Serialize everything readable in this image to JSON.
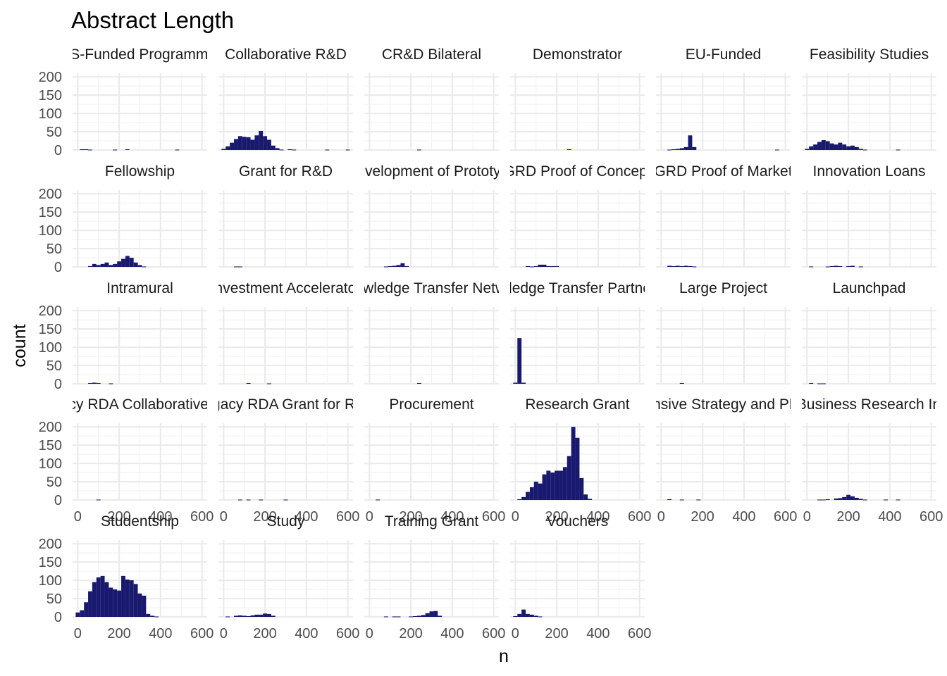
{
  "chart_data": {
    "type": "bar",
    "title": "Abstract Length",
    "xlabel": "n",
    "ylabel": "count",
    "xlim": [
      -25,
      625
    ],
    "ylim": [
      0,
      210
    ],
    "x_ticks": [
      "0",
      "200",
      "400",
      "600"
    ],
    "y_ticks": [
      "0",
      "50",
      "100",
      "150",
      "200"
    ],
    "bar_color": "#191970",
    "bin_width": 20,
    "grid": true,
    "ncol": 6,
    "x_axis_shown_under": [
      18,
      19,
      20,
      21,
      22,
      23,
      24,
      25,
      26,
      27
    ],
    "panels": [
      {
        "label": "BIS-Funded Programmes",
        "bins": [
          [
            20,
            2
          ],
          [
            40,
            2
          ],
          [
            60,
            1
          ],
          [
            180,
            1
          ],
          [
            240,
            2
          ],
          [
            480,
            1
          ]
        ]
      },
      {
        "label": "Collaborative R&D",
        "bins": [
          [
            0,
            3
          ],
          [
            20,
            10
          ],
          [
            40,
            20
          ],
          [
            60,
            30
          ],
          [
            80,
            38
          ],
          [
            100,
            36
          ],
          [
            120,
            35
          ],
          [
            140,
            28
          ],
          [
            160,
            40
          ],
          [
            180,
            52
          ],
          [
            200,
            38
          ],
          [
            220,
            28
          ],
          [
            240,
            12
          ],
          [
            260,
            5
          ],
          [
            280,
            1
          ],
          [
            320,
            2
          ],
          [
            340,
            1
          ],
          [
            500,
            1
          ],
          [
            600,
            1
          ]
        ]
      },
      {
        "label": "CR&D Bilateral",
        "bins": [
          [
            240,
            1
          ]
        ]
      },
      {
        "label": "Demonstrator",
        "bins": [
          [
            260,
            2
          ]
        ]
      },
      {
        "label": "EU-Funded",
        "bins": [
          [
            40,
            1
          ],
          [
            60,
            2
          ],
          [
            80,
            3
          ],
          [
            100,
            5
          ],
          [
            120,
            8
          ],
          [
            140,
            40
          ],
          [
            160,
            8
          ],
          [
            560,
            1
          ]
        ]
      },
      {
        "label": "Feasibility Studies",
        "bins": [
          [
            0,
            3
          ],
          [
            20,
            10
          ],
          [
            40,
            15
          ],
          [
            60,
            22
          ],
          [
            80,
            27
          ],
          [
            100,
            24
          ],
          [
            120,
            18
          ],
          [
            140,
            15
          ],
          [
            160,
            20
          ],
          [
            180,
            15
          ],
          [
            200,
            10
          ],
          [
            220,
            12
          ],
          [
            240,
            8
          ],
          [
            260,
            3
          ],
          [
            280,
            1
          ],
          [
            440,
            1
          ]
        ]
      },
      {
        "label": "Fellowship",
        "bins": [
          [
            60,
            2
          ],
          [
            80,
            8
          ],
          [
            100,
            5
          ],
          [
            120,
            8
          ],
          [
            140,
            12
          ],
          [
            160,
            5
          ],
          [
            180,
            8
          ],
          [
            200,
            15
          ],
          [
            220,
            22
          ],
          [
            240,
            30
          ],
          [
            260,
            25
          ],
          [
            280,
            12
          ],
          [
            300,
            5
          ],
          [
            320,
            1
          ]
        ]
      },
      {
        "label": "Grant for R&D",
        "bins": [
          [
            60,
            1
          ],
          [
            80,
            1
          ]
        ]
      },
      {
        "label": "Development of Prototype",
        "bins": [
          [
            80,
            1
          ],
          [
            100,
            2
          ],
          [
            120,
            3
          ],
          [
            140,
            5
          ],
          [
            160,
            10
          ],
          [
            180,
            2
          ]
        ]
      },
      {
        "label": "GRD Proof of Concept",
        "bins": [
          [
            60,
            2
          ],
          [
            80,
            1
          ],
          [
            100,
            2
          ],
          [
            120,
            6
          ],
          [
            140,
            6
          ],
          [
            160,
            2
          ],
          [
            180,
            2
          ],
          [
            200,
            2
          ]
        ]
      },
      {
        "label": "GRD Proof of Market",
        "bins": [
          [
            40,
            3
          ],
          [
            60,
            2
          ],
          [
            80,
            3
          ],
          [
            100,
            2
          ],
          [
            120,
            3
          ],
          [
            140,
            2
          ],
          [
            160,
            1
          ]
        ]
      },
      {
        "label": "Innovation Loans",
        "bins": [
          [
            20,
            1
          ],
          [
            100,
            1
          ],
          [
            120,
            2
          ],
          [
            140,
            3
          ],
          [
            160,
            2
          ],
          [
            200,
            2
          ],
          [
            220,
            3
          ],
          [
            260,
            1
          ]
        ]
      },
      {
        "label": "Intramural",
        "bins": [
          [
            60,
            2
          ],
          [
            80,
            3
          ],
          [
            100,
            2
          ],
          [
            160,
            1
          ]
        ]
      },
      {
        "label": "Investment Accelerator",
        "bins": [
          [
            120,
            2
          ],
          [
            220,
            1
          ]
        ]
      },
      {
        "label": "Knowledge Transfer Network",
        "bins": [
          [
            240,
            2
          ]
        ]
      },
      {
        "label": "Knowledge Transfer Partnership",
        "bins": [
          [
            0,
            3
          ],
          [
            20,
            125
          ],
          [
            40,
            3
          ]
        ]
      },
      {
        "label": "Large Project",
        "bins": [
          [
            100,
            2
          ]
        ]
      },
      {
        "label": "Launchpad",
        "bins": [
          [
            20,
            2
          ],
          [
            60,
            1
          ],
          [
            80,
            1
          ]
        ]
      },
      {
        "label": "Legacy RDA Collaborative R&D",
        "bins": [
          [
            100,
            1
          ]
        ]
      },
      {
        "label": "Legacy RDA Grant for R&D",
        "bins": [
          [
            80,
            1
          ],
          [
            120,
            1
          ],
          [
            180,
            1
          ],
          [
            300,
            1
          ]
        ]
      },
      {
        "label": "Procurement",
        "bins": [
          [
            40,
            1
          ]
        ]
      },
      {
        "label": "Research Grant",
        "bins": [
          [
            20,
            2
          ],
          [
            40,
            8
          ],
          [
            60,
            22
          ],
          [
            80,
            35
          ],
          [
            100,
            50
          ],
          [
            120,
            45
          ],
          [
            140,
            70
          ],
          [
            160,
            80
          ],
          [
            180,
            75
          ],
          [
            200,
            80
          ],
          [
            220,
            80
          ],
          [
            240,
            90
          ],
          [
            260,
            120
          ],
          [
            280,
            200
          ],
          [
            300,
            170
          ],
          [
            320,
            60
          ],
          [
            340,
            15
          ],
          [
            360,
            3
          ]
        ]
      },
      {
        "label": "Responsive Strategy and Planning",
        "bins": [
          [
            40,
            2
          ],
          [
            100,
            1
          ],
          [
            180,
            1
          ]
        ]
      },
      {
        "label": "Small Business Research Initiative",
        "bins": [
          [
            60,
            1
          ],
          [
            80,
            1
          ],
          [
            100,
            2
          ],
          [
            140,
            4
          ],
          [
            160,
            5
          ],
          [
            180,
            8
          ],
          [
            200,
            14
          ],
          [
            220,
            10
          ],
          [
            240,
            6
          ],
          [
            260,
            3
          ],
          [
            280,
            1
          ],
          [
            380,
            1
          ],
          [
            440,
            1
          ]
        ]
      },
      {
        "label": "Studentship",
        "bins": [
          [
            0,
            12
          ],
          [
            20,
            18
          ],
          [
            40,
            40
          ],
          [
            60,
            70
          ],
          [
            80,
            95
          ],
          [
            100,
            108
          ],
          [
            120,
            112
          ],
          [
            140,
            95
          ],
          [
            160,
            80
          ],
          [
            180,
            75
          ],
          [
            200,
            72
          ],
          [
            220,
            112
          ],
          [
            240,
            102
          ],
          [
            260,
            100
          ],
          [
            280,
            90
          ],
          [
            300,
            64
          ],
          [
            320,
            58
          ],
          [
            340,
            8
          ],
          [
            360,
            3
          ],
          [
            380,
            1
          ]
        ]
      },
      {
        "label": "Study",
        "bins": [
          [
            20,
            1
          ],
          [
            60,
            3
          ],
          [
            80,
            4
          ],
          [
            100,
            3
          ],
          [
            120,
            2
          ],
          [
            140,
            4
          ],
          [
            160,
            6
          ],
          [
            180,
            6
          ],
          [
            200,
            9
          ],
          [
            220,
            8
          ],
          [
            240,
            3
          ]
        ]
      },
      {
        "label": "Training Grant",
        "bins": [
          [
            80,
            1
          ],
          [
            120,
            1
          ],
          [
            140,
            1
          ],
          [
            200,
            1
          ],
          [
            220,
            2
          ],
          [
            240,
            3
          ],
          [
            260,
            5
          ],
          [
            280,
            10
          ],
          [
            300,
            15
          ],
          [
            320,
            16
          ],
          [
            340,
            3
          ]
        ]
      },
      {
        "label": "Vouchers",
        "bins": [
          [
            0,
            2
          ],
          [
            20,
            8
          ],
          [
            40,
            20
          ],
          [
            60,
            8
          ],
          [
            80,
            6
          ],
          [
            100,
            3
          ],
          [
            120,
            1
          ]
        ]
      }
    ]
  }
}
